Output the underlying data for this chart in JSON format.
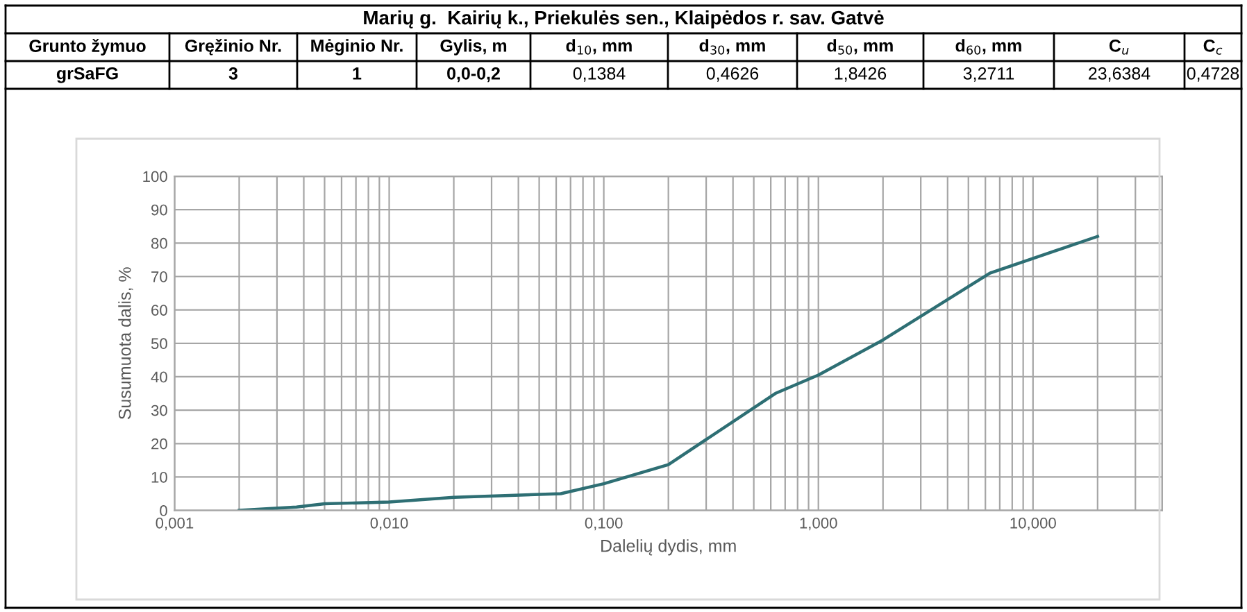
{
  "chart_data": {
    "type": "line",
    "title": "Marių g.  Kairių k., Priekulės sen., Klaipėdos r. sav. Gatvė",
    "annotations": [
      "Grunto žymuo",
      "Gręžinio Nr.",
      "Mėginio Nr.",
      "Gylis, m",
      "d$_{10}$, mm",
      "d$_{30}$, mm",
      "d$_{50}$, mm",
      "d$_{60}$, mm",
      "C$_{u}$",
      "C$_{c}$",
      "grSaFG",
      "3",
      "1",
      "0,0-0,2",
      "0,1384",
      "0,4626",
      "1,8426",
      "3,2711",
      "23,6384",
      "0,4728"
    ],
    "xlabel": "Dalelių dydis, mm",
    "ylabel": "Susumuota dalis, %",
    "x": [
      0.002,
      0.0037,
      0.005,
      0.01,
      0.02,
      0.063,
      0.1,
      0.2,
      0.63,
      1.0,
      2.0,
      6.3,
      20
    ],
    "series": [
      {
        "color": "#2e6f74",
        "values": [
          0,
          1,
          2,
          2.5,
          3.9,
          5,
          8,
          13.7,
          35,
          40.5,
          51,
          71,
          82
        ]
      }
    ],
    "log": "x",
    "xlim": [
      0.001,
      40
    ],
    "xticks": [
      {
        "value": 0.001,
        "label": "0,001"
      },
      {
        "value": 0.01,
        "label": "0,010"
      },
      {
        "value": 0.1,
        "label": "0,100"
      },
      {
        "value": 1,
        "label": "1,000"
      },
      {
        "value": 10,
        "label": "10,000"
      }
    ],
    "ylim": [
      0,
      100
    ],
    "yticks": [
      0,
      10,
      20,
      30,
      40,
      50,
      60,
      70,
      80,
      90,
      100
    ],
    "grid": true,
    "marker": "none",
    "line_style": "solid"
  }
}
